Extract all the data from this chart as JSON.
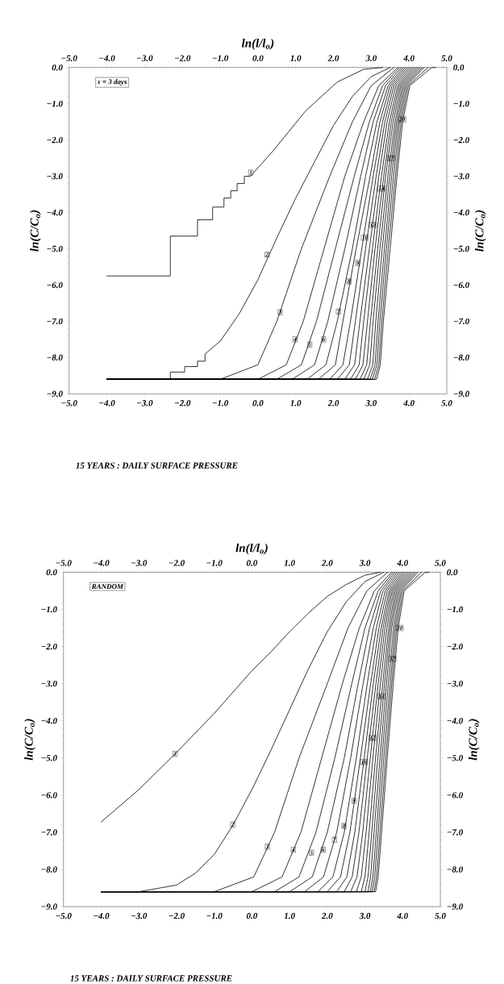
{
  "chart_data": [
    {
      "type": "line",
      "x2label": "ln(l/l$_{o}$)",
      "ylabel": "ln(C/C$_{o}$)",
      "y2label": "ln(C/C$_{o}$)",
      "annotations": [
        "τ = 3 days",
        "15 YEARS : DAILY SURFACE PRESSURE",
        {
          "text": "1",
          "x": -0.19,
          "y": -2.9
        },
        {
          "text": "2",
          "x": 0.24,
          "y": -5.16
        },
        {
          "text": "3",
          "x": 0.59,
          "y": -6.75
        },
        {
          "text": "4",
          "x": 0.98,
          "y": -7.5
        },
        {
          "text": "5",
          "x": 1.37,
          "y": -7.64
        },
        {
          "text": "6",
          "x": 1.74,
          "y": -7.5
        },
        {
          "text": "7",
          "x": 2.13,
          "y": -6.73
        },
        {
          "text": "8",
          "x": 2.41,
          "y": -5.9
        },
        {
          "text": "9",
          "x": 2.64,
          "y": -5.39
        },
        {
          "text": "10",
          "x": 2.83,
          "y": -4.69
        },
        {
          "text": "12",
          "x": 3.04,
          "y": -4.34
        },
        {
          "text": "14",
          "x": 3.27,
          "y": -3.34
        },
        {
          "text": "17",
          "x": 3.52,
          "y": -2.5
        },
        {
          "text": "20",
          "x": 3.82,
          "y": -1.43
        }
      ],
      "xlim": [
        -5,
        5
      ],
      "x2lim": [
        -5,
        5
      ],
      "ylim": [
        -9,
        0
      ],
      "y2lim": [
        -9,
        0
      ],
      "xticks": [
        {
          "value": -5,
          "label": "−5.0"
        },
        {
          "value": -4,
          "label": "−4.0"
        },
        {
          "value": -3,
          "label": "−3.0"
        },
        {
          "value": -2,
          "label": "−2.0"
        },
        {
          "value": -1,
          "label": "−1.0"
        },
        {
          "value": 0,
          "label": "0.0"
        },
        {
          "value": 1,
          "label": "1.0"
        },
        {
          "value": 2,
          "label": "2.0"
        },
        {
          "value": 3,
          "label": "3.0"
        },
        {
          "value": 4,
          "label": "4.0"
        },
        {
          "value": 5,
          "label": "5.0"
        }
      ],
      "x2ticks": [
        {
          "value": -5,
          "label": "−5.0"
        },
        {
          "value": -4,
          "label": "−4.0"
        },
        {
          "value": -3,
          "label": "−3.0"
        },
        {
          "value": -2,
          "label": "−2.0"
        },
        {
          "value": -1,
          "label": "−1.0"
        },
        {
          "value": 0,
          "label": "0.0"
        },
        {
          "value": 1,
          "label": "1.0"
        },
        {
          "value": 2,
          "label": "2.0"
        },
        {
          "value": 3,
          "label": "3.0"
        },
        {
          "value": 4,
          "label": "4.0"
        },
        {
          "value": 5,
          "label": "5.0"
        }
      ],
      "yticks": [
        {
          "value": 0,
          "label": "0.0"
        },
        {
          "value": -1,
          "label": "−1.0"
        },
        {
          "value": -2,
          "label": "−2.0"
        },
        {
          "value": -3,
          "label": "−3.0"
        },
        {
          "value": -4,
          "label": "−4.0"
        },
        {
          "value": -5,
          "label": "−5.0"
        },
        {
          "value": -6,
          "label": "−6.0"
        },
        {
          "value": -7,
          "label": "−7.0"
        },
        {
          "value": -8,
          "label": "−8.0"
        },
        {
          "value": -9,
          "label": "−9.0"
        }
      ],
      "y2ticks": [
        {
          "value": 0,
          "label": "0.0"
        },
        {
          "value": -1,
          "label": "−1.0"
        },
        {
          "value": -2,
          "label": "−2.0"
        },
        {
          "value": -3,
          "label": "−3.0"
        },
        {
          "value": -4,
          "label": "−4.0"
        },
        {
          "value": -5,
          "label": "−5.0"
        },
        {
          "value": -6,
          "label": "−6.0"
        },
        {
          "value": -7,
          "label": "−7.0"
        },
        {
          "value": -8,
          "label": "−8.0"
        },
        {
          "value": -9,
          "label": "−9.0"
        }
      ],
      "series": [
        {
          "color": "#000000",
          "x": [
            -4,
            -2.32,
            -2.32,
            -1.6,
            -1.6,
            -1.2,
            -1.2,
            -0.9,
            -0.9,
            -0.72,
            -0.72,
            -0.55,
            -0.55,
            -0.36,
            -0.36,
            -0.2,
            0.4,
            1.26,
            2.1,
            2.8,
            3.3
          ],
          "values": [
            -5.75,
            -5.75,
            -4.65,
            -4.65,
            -4.2,
            -4.2,
            -3.85,
            -3.85,
            -3.6,
            -3.6,
            -3.4,
            -3.4,
            -3.2,
            -3.2,
            -3.0,
            -3.0,
            -2.3,
            -1.2,
            -0.4,
            -0.05,
            0
          ]
        },
        {
          "color": "#000000",
          "x": [
            -4,
            -2.32,
            -2.32,
            -1.94,
            -1.94,
            -1.6,
            -1.6,
            -1.4,
            -1.4,
            -1.0,
            -0.5,
            0,
            0.5,
            1.0,
            1.5,
            2.0,
            2.5,
            3.0,
            3.5
          ],
          "values": [
            -8.6,
            -8.6,
            -8.4,
            -8.4,
            -8.25,
            -8.25,
            -8.1,
            -8.1,
            -7.9,
            -7.55,
            -6.8,
            -5.85,
            -4.7,
            -3.6,
            -2.6,
            -1.6,
            -0.8,
            -0.25,
            0
          ]
        },
        {
          "color": "#000000",
          "x": [
            -4,
            -1.0,
            0.0,
            0.5,
            1.15,
            1.9,
            2.5,
            3.0,
            3.6
          ],
          "values": [
            -8.6,
            -8.6,
            -8.2,
            -7,
            -5,
            -3,
            -1.5,
            -0.5,
            0
          ]
        },
        {
          "color": "#000000",
          "x": [
            -4,
            0.0,
            0.75,
            1.2,
            1.75,
            2.3,
            2.8,
            3.2,
            3.7
          ],
          "values": [
            -8.6,
            -8.6,
            -8.2,
            -7,
            -5,
            -3,
            -1.5,
            -0.5,
            0
          ]
        },
        {
          "color": "#000000",
          "x": [
            -4,
            0.5,
            1.15,
            1.55,
            2.05,
            2.55,
            2.95,
            3.3,
            3.75
          ],
          "values": [
            -8.6,
            -8.6,
            -8.2,
            -7,
            -5,
            -3,
            -1.5,
            -0.5,
            0
          ]
        },
        {
          "color": "#000000",
          "x": [
            -4,
            0.9,
            1.5,
            1.85,
            2.3,
            2.72,
            3.05,
            3.38,
            3.8
          ],
          "values": [
            -8.6,
            -8.6,
            -8.2,
            -7,
            -5,
            -3,
            -1.5,
            -0.5,
            0
          ]
        },
        {
          "color": "#000000",
          "x": [
            -4,
            1.3,
            1.8,
            2.1,
            2.5,
            2.85,
            3.15,
            3.45,
            3.85
          ],
          "values": [
            -8.6,
            -8.6,
            -8.2,
            -7,
            -5,
            -3,
            -1.5,
            -0.5,
            0
          ]
        },
        {
          "color": "#000000",
          "x": [
            -4,
            1.6,
            2.05,
            2.25,
            2.6,
            2.97,
            3.23,
            3.5,
            3.9
          ],
          "values": [
            -8.6,
            -8.6,
            -8.2,
            -7,
            -5,
            -3,
            -1.5,
            -0.5,
            0
          ]
        },
        {
          "color": "#000000",
          "x": [
            -4,
            1.9,
            2.25,
            2.45,
            2.75,
            3.05,
            3.3,
            3.55,
            3.95
          ],
          "values": [
            -8.6,
            -8.6,
            -8.2,
            -7,
            -5,
            -3,
            -1.5,
            -0.5,
            0
          ]
        },
        {
          "color": "#000000",
          "x": [
            -4,
            2.1,
            2.42,
            2.58,
            2.85,
            3.13,
            3.36,
            3.6,
            4.0
          ],
          "values": [
            -8.6,
            -8.6,
            -8.2,
            -7,
            -5,
            -3,
            -1.5,
            -0.5,
            0
          ]
        },
        {
          "color": "#000000",
          "x": [
            -4,
            2.3,
            2.56,
            2.7,
            2.95,
            3.2,
            3.42,
            3.65,
            4.05
          ],
          "values": [
            -8.6,
            -8.6,
            -8.2,
            -7,
            -5,
            -3,
            -1.5,
            -0.5,
            0
          ]
        },
        {
          "color": "#000000",
          "x": [
            -4,
            2.45,
            2.68,
            2.8,
            3.03,
            3.27,
            3.48,
            3.7,
            4.1
          ],
          "values": [
            -8.6,
            -8.6,
            -8.2,
            -7,
            -5,
            -3,
            -1.5,
            -0.5,
            0
          ]
        },
        {
          "color": "#000000",
          "x": [
            -4,
            2.58,
            2.78,
            2.9,
            3.1,
            3.33,
            3.53,
            3.74,
            4.15
          ],
          "values": [
            -8.6,
            -8.6,
            -8.2,
            -7,
            -5,
            -3,
            -1.5,
            -0.5,
            0
          ]
        },
        {
          "color": "#000000",
          "x": [
            -4,
            2.7,
            2.88,
            2.98,
            3.17,
            3.38,
            3.58,
            3.78,
            4.2
          ],
          "values": [
            -8.6,
            -8.6,
            -8.2,
            -7,
            -5,
            -3,
            -1.5,
            -0.5,
            0
          ]
        },
        {
          "color": "#000000",
          "x": [
            -4,
            2.8,
            2.96,
            3.05,
            3.23,
            3.44,
            3.63,
            3.82,
            4.25
          ],
          "values": [
            -8.6,
            -8.6,
            -8.2,
            -7,
            -5,
            -3,
            -1.5,
            -0.5,
            0
          ]
        },
        {
          "color": "#000000",
          "x": [
            -4,
            2.9,
            3.04,
            3.12,
            3.29,
            3.49,
            3.67,
            3.86,
            4.3
          ],
          "values": [
            -8.6,
            -8.6,
            -8.2,
            -7,
            -5,
            -3,
            -1.5,
            -0.5,
            0
          ]
        },
        {
          "color": "#000000",
          "x": [
            -4,
            2.97,
            3.1,
            3.18,
            3.35,
            3.54,
            3.71,
            3.9,
            4.35
          ],
          "values": [
            -8.6,
            -8.6,
            -8.2,
            -7,
            -5,
            -3,
            -1.5,
            -0.5,
            0
          ]
        },
        {
          "color": "#000000",
          "x": [
            -4,
            3.03,
            3.15,
            3.23,
            3.4,
            3.59,
            3.75,
            3.94,
            4.4
          ],
          "values": [
            -8.6,
            -8.6,
            -8.2,
            -7,
            -5,
            -3,
            -1.5,
            -0.5,
            0
          ]
        },
        {
          "color": "#000000",
          "x": [
            -4,
            3.09,
            3.2,
            3.28,
            3.45,
            3.64,
            3.79,
            3.98,
            4.5
          ],
          "values": [
            -8.6,
            -8.6,
            -8.2,
            -7,
            -5,
            -3,
            -1.5,
            -0.5,
            0
          ]
        },
        {
          "color": "#000000",
          "x": [
            -4,
            3.14,
            3.24,
            3.32,
            3.5,
            3.68,
            3.83,
            4.02,
            4.6,
            4.7
          ],
          "values": [
            -8.6,
            -8.6,
            -8.2,
            -7,
            -5,
            -3,
            -1.5,
            -0.5,
            0,
            0
          ]
        }
      ]
    },
    {
      "type": "line",
      "x2label": "ln(l/l$_{o}$)",
      "ylabel": "ln(C/C$_{o}$)",
      "y2label": "ln(C/C$_{o}$)",
      "annotations": [
        "RANDOM",
        "15 YEARS : DAILY SURFACE PRESSURE",
        {
          "text": "1",
          "x": -2.04,
          "y": -4.89
        },
        {
          "text": "2",
          "x": -0.51,
          "y": -6.79
        },
        {
          "text": "3",
          "x": 0.41,
          "y": -7.39
        },
        {
          "text": "4",
          "x": 1.1,
          "y": -7.47
        },
        {
          "text": "5",
          "x": 1.58,
          "y": -7.55
        },
        {
          "text": "6",
          "x": 1.89,
          "y": -7.47
        },
        {
          "text": "7",
          "x": 2.19,
          "y": -7.2
        },
        {
          "text": "8",
          "x": 2.44,
          "y": -6.83
        },
        {
          "text": "9",
          "x": 2.71,
          "y": -6.15
        },
        {
          "text": "10",
          "x": 2.97,
          "y": -5.11
        },
        {
          "text": "12",
          "x": 3.2,
          "y": -4.46
        },
        {
          "text": "14",
          "x": 3.44,
          "y": -3.34
        },
        {
          "text": "17",
          "x": 3.73,
          "y": -2.33
        },
        {
          "text": "20",
          "x": 3.92,
          "y": -1.5
        }
      ],
      "xlim": [
        -5,
        5
      ],
      "x2lim": [
        -5,
        5
      ],
      "ylim": [
        -9,
        0
      ],
      "y2lim": [
        -9,
        0
      ],
      "xticks": [
        {
          "value": -5,
          "label": "−5.0"
        },
        {
          "value": -4,
          "label": "−4.0"
        },
        {
          "value": -3,
          "label": "−3.0"
        },
        {
          "value": -2,
          "label": "−2.0"
        },
        {
          "value": -1,
          "label": "−1.0"
        },
        {
          "value": 0,
          "label": "0.0"
        },
        {
          "value": 1,
          "label": "1.0"
        },
        {
          "value": 2,
          "label": "2.0"
        },
        {
          "value": 3,
          "label": "3.0"
        },
        {
          "value": 4,
          "label": "4.0"
        },
        {
          "value": 5,
          "label": "5.0"
        }
      ],
      "x2ticks": [
        {
          "value": -5,
          "label": "−5.0"
        },
        {
          "value": -4,
          "label": "−4.0"
        },
        {
          "value": -3,
          "label": "−3.0"
        },
        {
          "value": -2,
          "label": "−2.0"
        },
        {
          "value": -1,
          "label": "−1.0"
        },
        {
          "value": 0,
          "label": "0.0"
        },
        {
          "value": 1,
          "label": "1.0"
        },
        {
          "value": 2,
          "label": "2.0"
        },
        {
          "value": 3,
          "label": "3.0"
        },
        {
          "value": 4,
          "label": "4.0"
        },
        {
          "value": 5,
          "label": "5.0"
        }
      ],
      "yticks": [
        {
          "value": 0,
          "label": "0.0"
        },
        {
          "value": -1,
          "label": "−1.0"
        },
        {
          "value": -2,
          "label": "−2.0"
        },
        {
          "value": -3,
          "label": "−3.0"
        },
        {
          "value": -4,
          "label": "−4.0"
        },
        {
          "value": -5,
          "label": "−5.0"
        },
        {
          "value": -6,
          "label": "−6.0"
        },
        {
          "value": -7,
          "label": "−7.0"
        },
        {
          "value": -8,
          "label": "−8.0"
        },
        {
          "value": -9,
          "label": "−9.0"
        }
      ],
      "y2ticks": [
        {
          "value": 0,
          "label": "0.0"
        },
        {
          "value": -1,
          "label": "−1.0"
        },
        {
          "value": -2,
          "label": "−2.0"
        },
        {
          "value": -3,
          "label": "−3.0"
        },
        {
          "value": -4,
          "label": "−4.0"
        },
        {
          "value": -5,
          "label": "−5.0"
        },
        {
          "value": -6,
          "label": "−6.0"
        },
        {
          "value": -7,
          "label": "−7.0"
        },
        {
          "value": -8,
          "label": "−8.0"
        },
        {
          "value": -9,
          "label": "−9.0"
        }
      ],
      "series": [
        {
          "color": "#000000",
          "x": [
            -4,
            -3,
            -2,
            -1,
            0,
            0.5,
            1.0,
            1.5,
            2.0,
            2.5,
            3.0,
            3.4
          ],
          "values": [
            -6.72,
            -5.85,
            -4.85,
            -3.8,
            -2.65,
            -2.15,
            -1.6,
            -1.1,
            -0.65,
            -0.33,
            -0.08,
            0
          ]
        },
        {
          "color": "#000000",
          "x": [
            -4,
            -3,
            -2,
            -1.5,
            -1.0,
            -0.5,
            0,
            0.5,
            1.0,
            1.5,
            2.0,
            2.5,
            3.0,
            3.5
          ],
          "values": [
            -8.6,
            -8.6,
            -8.42,
            -8.1,
            -7.6,
            -6.8,
            -5.85,
            -4.8,
            -3.7,
            -2.6,
            -1.6,
            -0.8,
            -0.25,
            0
          ]
        },
        {
          "color": "#000000",
          "x": [
            -4,
            -1.0,
            0.05,
            0.6,
            1.25,
            2.0,
            2.55,
            3.05,
            3.6
          ],
          "values": [
            -8.6,
            -8.6,
            -8.2,
            -7,
            -5,
            -3,
            -1.5,
            -0.5,
            0
          ]
        },
        {
          "color": "#000000",
          "x": [
            -4,
            0.0,
            0.8,
            1.3,
            1.85,
            2.4,
            2.85,
            3.25,
            3.7
          ],
          "values": [
            -8.6,
            -8.6,
            -8.2,
            -7,
            -5,
            -3,
            -1.5,
            -0.5,
            0
          ]
        },
        {
          "color": "#000000",
          "x": [
            -4,
            0.6,
            1.25,
            1.7,
            2.2,
            2.65,
            3.0,
            3.35,
            3.75
          ],
          "values": [
            -8.6,
            -8.6,
            -8.2,
            -7,
            -5,
            -3,
            -1.5,
            -0.5,
            0
          ]
        },
        {
          "color": "#000000",
          "x": [
            -4,
            1.0,
            1.6,
            2.0,
            2.45,
            2.82,
            3.12,
            3.42,
            3.8
          ],
          "values": [
            -8.6,
            -8.6,
            -8.2,
            -7,
            -5,
            -3,
            -1.5,
            -0.5,
            0
          ]
        },
        {
          "color": "#000000",
          "x": [
            -4,
            1.4,
            1.9,
            2.25,
            2.62,
            2.95,
            3.22,
            3.48,
            3.85
          ],
          "values": [
            -8.6,
            -8.6,
            -8.2,
            -7,
            -5,
            -3,
            -1.5,
            -0.5,
            0
          ]
        },
        {
          "color": "#000000",
          "x": [
            -4,
            1.75,
            2.15,
            2.45,
            2.77,
            3.06,
            3.3,
            3.54,
            3.9
          ],
          "values": [
            -8.6,
            -8.6,
            -8.2,
            -7,
            -5,
            -3,
            -1.5,
            -0.5,
            0
          ]
        },
        {
          "color": "#000000",
          "x": [
            -4,
            2.0,
            2.35,
            2.6,
            2.88,
            3.15,
            3.37,
            3.59,
            3.95
          ],
          "values": [
            -8.6,
            -8.6,
            -8.2,
            -7,
            -5,
            -3,
            -1.5,
            -0.5,
            0
          ]
        },
        {
          "color": "#000000",
          "x": [
            -4,
            2.25,
            2.52,
            2.73,
            2.98,
            3.22,
            3.43,
            3.64,
            4.0
          ],
          "values": [
            -8.6,
            -8.6,
            -8.2,
            -7,
            -5,
            -3,
            -1.5,
            -0.5,
            0
          ]
        },
        {
          "color": "#000000",
          "x": [
            -4,
            2.45,
            2.66,
            2.84,
            3.06,
            3.29,
            3.48,
            3.68,
            4.05
          ],
          "values": [
            -8.6,
            -8.6,
            -8.2,
            -7,
            -5,
            -3,
            -1.5,
            -0.5,
            0
          ]
        },
        {
          "color": "#000000",
          "x": [
            -4,
            2.62,
            2.79,
            2.94,
            3.14,
            3.35,
            3.53,
            3.72,
            4.1
          ],
          "values": [
            -8.6,
            -8.6,
            -8.2,
            -7,
            -5,
            -3,
            -1.5,
            -0.5,
            0
          ]
        },
        {
          "color": "#000000",
          "x": [
            -4,
            2.77,
            2.9,
            3.03,
            3.21,
            3.41,
            3.58,
            3.76,
            4.15
          ],
          "values": [
            -8.6,
            -8.6,
            -8.2,
            -7,
            -5,
            -3,
            -1.5,
            -0.5,
            0
          ]
        },
        {
          "color": "#000000",
          "x": [
            -4,
            2.9,
            3.0,
            3.11,
            3.28,
            3.47,
            3.63,
            3.8,
            4.2
          ],
          "values": [
            -8.6,
            -8.6,
            -8.2,
            -7,
            -5,
            -3,
            -1.5,
            -0.5,
            0
          ]
        },
        {
          "color": "#000000",
          "x": [
            -4,
            3.0,
            3.08,
            3.18,
            3.34,
            3.52,
            3.67,
            3.84,
            4.25
          ],
          "values": [
            -8.6,
            -8.6,
            -8.2,
            -7,
            -5,
            -3,
            -1.5,
            -0.5,
            0
          ]
        },
        {
          "color": "#000000",
          "x": [
            -4,
            3.08,
            3.15,
            3.24,
            3.4,
            3.57,
            3.71,
            3.88,
            4.3
          ],
          "values": [
            -8.6,
            -8.6,
            -8.2,
            -7,
            -5,
            -3,
            -1.5,
            -0.5,
            0
          ]
        },
        {
          "color": "#000000",
          "x": [
            -4,
            3.14,
            3.21,
            3.3,
            3.45,
            3.62,
            3.76,
            3.92,
            4.35
          ],
          "values": [
            -8.6,
            -8.6,
            -8.2,
            -7,
            -5,
            -3,
            -1.5,
            -0.5,
            0
          ]
        },
        {
          "color": "#000000",
          "x": [
            -4,
            3.19,
            3.26,
            3.35,
            3.5,
            3.67,
            3.8,
            3.96,
            4.4
          ],
          "values": [
            -8.6,
            -8.6,
            -8.2,
            -7,
            -5,
            -3,
            -1.5,
            -0.5,
            0
          ]
        },
        {
          "color": "#000000",
          "x": [
            -4,
            3.24,
            3.31,
            3.4,
            3.55,
            3.71,
            3.84,
            4.0,
            4.5
          ],
          "values": [
            -8.6,
            -8.6,
            -8.2,
            -7,
            -5,
            -3,
            -1.5,
            -0.5,
            0
          ]
        },
        {
          "color": "#000000",
          "x": [
            -4,
            3.28,
            3.35,
            3.44,
            3.59,
            3.75,
            3.88,
            4.04,
            4.6,
            4.7
          ],
          "values": [
            -8.6,
            -8.6,
            -8.2,
            -7,
            -5,
            -3,
            -1.5,
            -0.5,
            0,
            0
          ]
        }
      ]
    }
  ]
}
